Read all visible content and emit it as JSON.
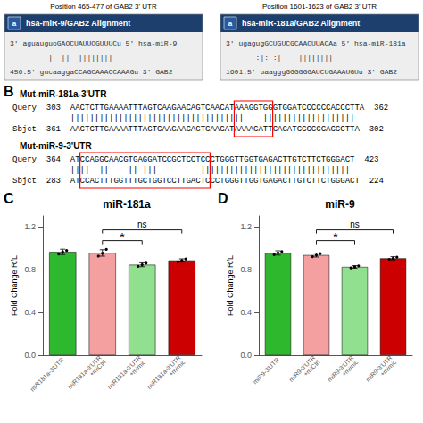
{
  "chart_data": [
    {
      "type": "bar",
      "panel_label": "C",
      "title": "miR-181a",
      "ylabel": "Fold Change R/L",
      "categories": [
        "miR181a-3'UTR",
        "miR181a-3'UTR\n+miCtrl",
        "miR181a-3'UTR\n+mimic",
        "miR181a-3'UTR\n+mimic"
      ],
      "values": [
        0.965,
        0.955,
        0.845,
        0.885
      ],
      "colors": [
        "#2db82d",
        "#f4a0a0",
        "#90e090",
        "#cc0000"
      ],
      "errors": [
        0.025,
        0.03,
        0.018,
        0.015
      ],
      "points": [
        [
          0.945,
          0.965,
          0.978
        ],
        [
          0.925,
          0.952,
          0.988
        ],
        [
          0.83,
          0.845,
          0.86
        ],
        [
          0.872,
          0.885,
          0.898
        ]
      ],
      "brackets": [
        {
          "from": 1,
          "to": 2,
          "y": 1.07,
          "label": "*"
        },
        {
          "from": 1,
          "to": 3,
          "y": 1.17,
          "label": "ns"
        }
      ],
      "ylim": [
        0.0,
        1.3
      ],
      "yticks": [
        {
          "value": 0.0,
          "label": "0.0"
        },
        0.4,
        0.8,
        1.2
      ],
      "grid": false
    },
    {
      "type": "bar",
      "panel_label": "D",
      "title": "miR-9",
      "ylabel": "Fold Change R/L",
      "categories": [
        "miR9-3'UTR",
        "miR9-3'UTR\n+miCtrl",
        "miR9-3'UTR\n+mimic",
        "miR9-3'UTR\n+mimic"
      ],
      "values": [
        0.955,
        0.935,
        0.825,
        0.905
      ],
      "colors": [
        "#2db82d",
        "#f4a0a0",
        "#90e090",
        "#cc0000"
      ],
      "errors": [
        0.02,
        0.018,
        0.012,
        0.015
      ],
      "points": [
        [
          0.938,
          0.955,
          0.968
        ],
        [
          0.92,
          0.935,
          0.948
        ],
        [
          0.815,
          0.825,
          0.835
        ],
        [
          0.895,
          0.905,
          0.915
        ]
      ],
      "brackets": [
        {
          "from": 1,
          "to": 2,
          "y": 1.07,
          "label": "*"
        },
        {
          "from": 1,
          "to": 3,
          "y": 1.17,
          "label": "ns"
        }
      ],
      "ylim": [
        0.0,
        1.3
      ],
      "yticks": [
        {
          "value": 0.0,
          "label": "0.0"
        },
        0.4,
        0.8,
        1.2
      ],
      "grid": false
    }
  ],
  "annotations": {
    "alignments": [
      {
        "caption": "Position 465-477 of GAB2 3' UTR",
        "icon": "a",
        "header": "hsa-miR-9/GAB2 Alignment",
        "header_color": "#1c3f6e",
        "box_color": "#eeeeee",
        "lines": [
          "3' aguauguoGAOCUAUUOGUUUCu 5' hsa-miR-9",
          "         |  ||  ||||||||",
          "456:5' gucaaggaCCAGCAAACCAAAGu 3' GAB2"
        ]
      },
      {
        "caption": "Position 1601-1623 of GAB2 3' UTR",
        "icon": "a",
        "header": "hsa-miR-181a/GAB2 Alignment",
        "header_color": "#1c3f6e",
        "box_color": "#eeeeee",
        "lines": [
          "3' ugagugGCUGUCGCAACUUACAa 5' hsa-miR-181a",
          "       :|: :|    ||||||||",
          "1601:5' uaagggGGGGGGAUCUGAAAUGUu 3' GAB2"
        ]
      }
    ],
    "blast": {
      "label": "B",
      "sections": [
        {
          "title": "Mut-miR-181a-3'UTR",
          "lines": [
            "Query  303  AACTCTTGAAAATTTAGTCAAGAACAGTCAACATAAAGGTGGGTGGATCCCCCCACCCTTA  362",
            "            ||||||||||||||||||||||||||||||||||||    |||||||||||||||||||",
            "Sbjct  361  AACTCTTGAAAATTTAGTCAAGAACAGTCAACATAAAACATTCAGATCCCCCCACCCTTA  302"
          ]
        },
        {
          "title": "Mut-miR-9-3'UTR",
          "lines": [
            "Query  364  ATCCAGGCAACGTGAGGATCCGCTCCTCCCTGGGTTGGTGAGACTTGTCTTCTGGGACT  423",
            "            ||||  ||    || |||         |||||||||||||||||||||||||||||||",
            "Sbjct  283  ATCCACTTTGGTTTGCTGGTCCTTGACTCCCTGGGTTGGTGAGACTTGTCTTCTGGGACT  224"
          ]
        }
      ]
    }
  },
  "background_color": "#ffffff"
}
